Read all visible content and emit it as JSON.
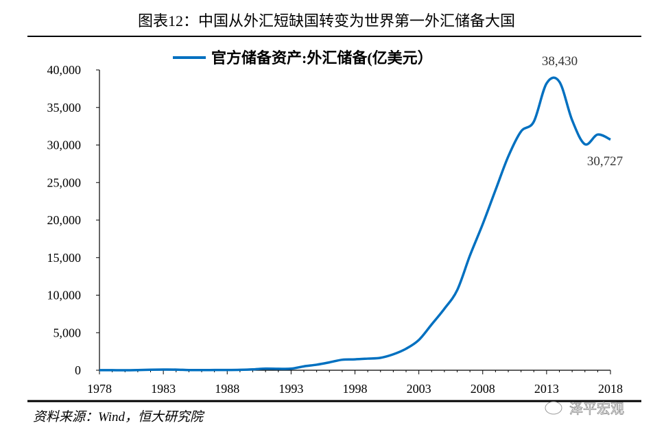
{
  "title": "图表12：中国从外汇短缺国转变为世界第一外汇储备大国",
  "source": "资料来源：Wind，恒大研究院",
  "watermark": "泽平宏观",
  "colors": {
    "series": "#0070C0"
  },
  "chart_data": {
    "type": "line",
    "title": "图表12：中国从外汇短缺国转变为世界第一外汇储备大国",
    "xlabel": "",
    "ylabel": "",
    "xlim": [
      1978,
      2018
    ],
    "ylim": [
      0,
      40000
    ],
    "xticks": [
      "1978",
      "1983",
      "1988",
      "1993",
      "1998",
      "2003",
      "2008",
      "2013",
      "2018"
    ],
    "yticks": [
      "0",
      "5,000",
      "10,000",
      "15,000",
      "20,000",
      "25,000",
      "30,000",
      "35,000",
      "40,000"
    ],
    "legend": "top-left",
    "grid": false,
    "series": [
      {
        "name": "官方储备资产:外汇储备(亿美元）",
        "x": [
          1978,
          1979,
          1980,
          1981,
          1982,
          1983,
          1984,
          1985,
          1986,
          1987,
          1988,
          1989,
          1990,
          1991,
          1992,
          1993,
          1994,
          1995,
          1996,
          1997,
          1998,
          1999,
          2000,
          2001,
          2002,
          2003,
          2004,
          2005,
          2006,
          2007,
          2008,
          2009,
          2010,
          2011,
          2012,
          2013,
          2014,
          2015,
          2016,
          2017,
          2018
        ],
        "values": [
          15,
          8,
          0,
          27,
          70,
          89,
          82,
          26,
          21,
          29,
          34,
          56,
          111,
          217,
          194,
          212,
          516,
          736,
          1050,
          1399,
          1450,
          1547,
          1656,
          2122,
          2864,
          4033,
          6099,
          8189,
          10663,
          15282,
          19460,
          23992,
          28473,
          31811,
          33116,
          38213,
          38430,
          33304,
          30105,
          31399,
          30727
        ]
      }
    ],
    "annotations": [
      {
        "text": "38,430",
        "x": 2014,
        "y": 38430
      },
      {
        "text": "30,727",
        "x": 2018,
        "y": 30727
      }
    ]
  }
}
